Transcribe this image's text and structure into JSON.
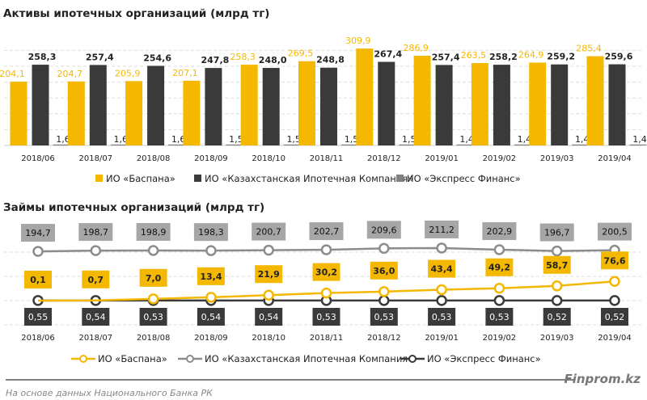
{
  "colors": {
    "baspana": "#F5B800",
    "kik": "#3A3A3A",
    "express": "#808080",
    "kik_line": "#8C8C8C",
    "express_line": "#3A3A3A"
  },
  "chart_data": [
    {
      "type": "bar",
      "title": "Активы ипотечных организаций (млрд тг)",
      "categories": [
        "2018/06",
        "2018/07",
        "2018/08",
        "2018/09",
        "2018/10",
        "2018/11",
        "2018/12",
        "2019/01",
        "2019/02",
        "2019/03",
        "2019/04"
      ],
      "series": [
        {
          "name": "ИО «Баспана»",
          "values": [
            204.1,
            204.7,
            205.9,
            207.1,
            258.3,
            269.5,
            309.9,
            286.9,
            263.5,
            264.9,
            285.4
          ],
          "labels": [
            "204,1",
            "204,7",
            "205,9",
            "207,1",
            "258,3",
            "269,5",
            "309,9",
            "286,9",
            "263,5",
            "264,9",
            "285,4"
          ]
        },
        {
          "name": "ИО «Казахстанская Ипотечная Компания»",
          "values": [
            258.3,
            257.4,
            254.6,
            247.8,
            248.0,
            248.8,
            267.4,
            257.4,
            258.2,
            259.2,
            259.6
          ],
          "labels": [
            "258,3",
            "257,4",
            "254,6",
            "247,8",
            "248,0",
            "248,8",
            "267,4",
            "257,4",
            "258,2",
            "259,2",
            "259,6"
          ]
        },
        {
          "name": "ИО «Экспресс Финанс»",
          "values": [
            1.6,
            1.6,
            1.6,
            1.5,
            1.5,
            1.5,
            1.5,
            1.4,
            1.4,
            1.4,
            1.4
          ],
          "labels": [
            "1,6",
            "1,6",
            "1,6",
            "1,5",
            "1,5",
            "1,5",
            "1,5",
            "1,4",
            "1,4",
            "1,4",
            "1,4"
          ]
        }
      ],
      "ylim": [
        0,
        336
      ],
      "grid": true,
      "legend": "bottom"
    },
    {
      "type": "line",
      "title": "Займы ипотечных организаций (млрд тг)",
      "categories": [
        "2018/06",
        "2018/07",
        "2018/08",
        "2018/09",
        "2018/10",
        "2018/11",
        "2018/12",
        "2019/01",
        "2019/02",
        "2019/03",
        "2019/04"
      ],
      "series": [
        {
          "name": "ИО «Баспана»",
          "values": [
            0.1,
            0.7,
            7.0,
            13.4,
            21.9,
            30.2,
            36.0,
            43.4,
            49.2,
            58.7,
            76.6
          ],
          "labels": [
            "0,1",
            "0,7",
            "7,0",
            "13,4",
            "21,9",
            "30,2",
            "36,0",
            "43,4",
            "49,2",
            "58,7",
            "76,6"
          ]
        },
        {
          "name": "ИО «Казахстанская Ипотечная Компания»",
          "values": [
            194.7,
            198.7,
            198.9,
            198.3,
            200.7,
            202.7,
            209.6,
            211.2,
            202.9,
            196.7,
            200.5
          ],
          "labels": [
            "194,7",
            "198,7",
            "198,9",
            "198,3",
            "200,7",
            "202,7",
            "209,6",
            "211,2",
            "202,9",
            "196,7",
            "200,5"
          ]
        },
        {
          "name": "ИО «Экспресс Финанс»",
          "values": [
            0.55,
            0.54,
            0.53,
            0.54,
            0.54,
            0.53,
            0.53,
            0.53,
            0.53,
            0.52,
            0.52
          ],
          "labels": [
            "0,55",
            "0,54",
            "0,53",
            "0,54",
            "0,54",
            "0,53",
            "0,53",
            "0,53",
            "0,53",
            "0,52",
            "0,52"
          ]
        }
      ],
      "grid": true,
      "legend": "bottom"
    }
  ],
  "footer": {
    "source": "На основе данных Национального Банка РК",
    "brand": "Finprom.kz"
  }
}
